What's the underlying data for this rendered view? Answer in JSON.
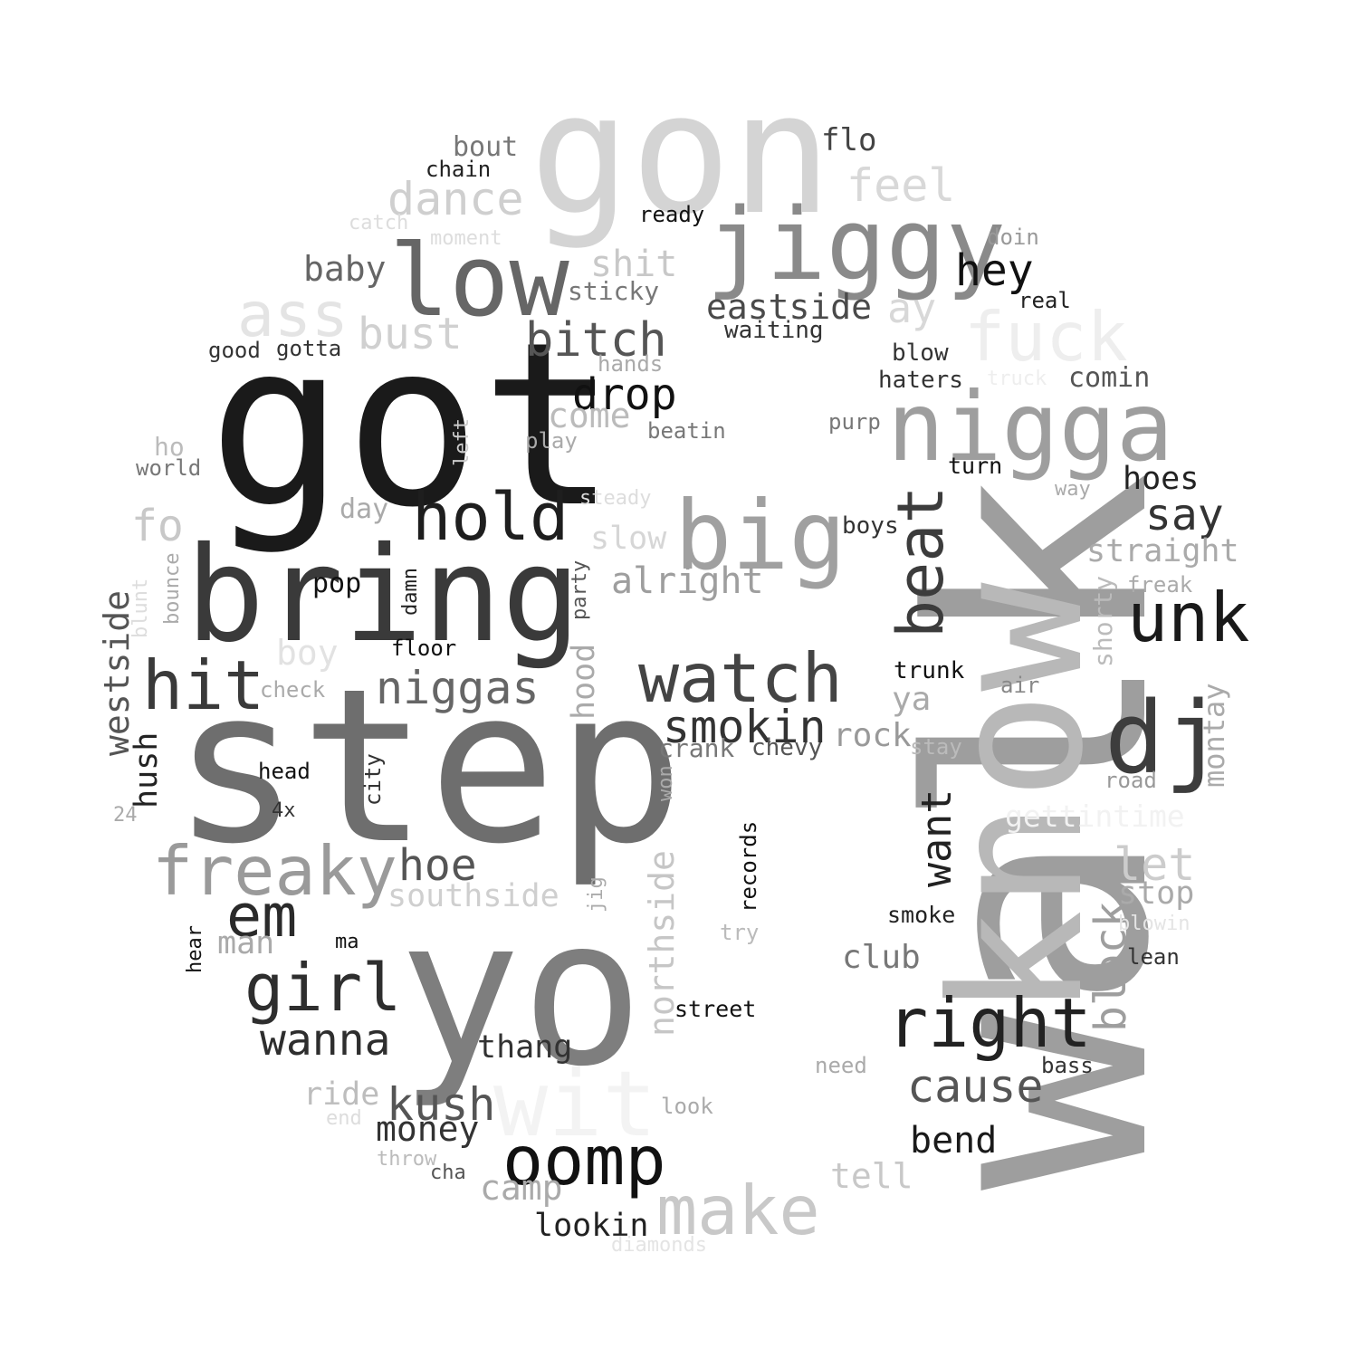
{
  "words": [
    {
      "text": "walk",
      "color": "#9e9e9e"
    },
    {
      "text": "got",
      "color": "#1a1a1a"
    },
    {
      "text": "step",
      "color": "#6e6e6e"
    },
    {
      "text": "know",
      "color": "#b8b8b8"
    },
    {
      "text": "gon",
      "color": "#d4d4d4"
    },
    {
      "text": "yo",
      "color": "#7e7e7e"
    },
    {
      "text": "bring",
      "color": "#3a3a3a"
    },
    {
      "text": "jiggy",
      "color": "#8a8a8a"
    },
    {
      "text": "nigga",
      "color": "#9e9e9e"
    },
    {
      "text": "low",
      "color": "#666666"
    },
    {
      "text": "big",
      "color": "#a0a0a0"
    },
    {
      "text": "dj",
      "color": "#3d3d3d"
    },
    {
      "text": "wit",
      "color": "#f3f3f3"
    },
    {
      "text": "fuck",
      "color": "#eeeeee"
    },
    {
      "text": "freaky",
      "color": "#9a9a9a"
    },
    {
      "text": "watch",
      "color": "#444444"
    },
    {
      "text": "oomp",
      "color": "#111111"
    },
    {
      "text": "right",
      "color": "#222222"
    },
    {
      "text": "hit",
      "color": "#3a3a3a"
    },
    {
      "text": "make",
      "color": "#c8c8c8"
    },
    {
      "text": "hold",
      "color": "#1e1e1e"
    },
    {
      "text": "unk",
      "color": "#1a1a1a"
    },
    {
      "text": "ass",
      "color": "#e4e4e4"
    },
    {
      "text": "girl",
      "color": "#2e2e2e"
    },
    {
      "text": "beat",
      "color": "#3c3c3c"
    },
    {
      "text": "em",
      "color": "#2a2a2a"
    },
    {
      "text": "bitch",
      "color": "#555555"
    },
    {
      "text": "dance",
      "color": "#cfcfcf"
    },
    {
      "text": "smokin",
      "color": "#333333"
    },
    {
      "text": "kush",
      "color": "#555555"
    },
    {
      "text": "cause",
      "color": "#555555"
    },
    {
      "text": "niggas",
      "color": "#666666"
    },
    {
      "text": "wanna",
      "color": "#2e2e2e"
    },
    {
      "text": "hey",
      "color": "#111111"
    },
    {
      "text": "drop",
      "color": "#111111"
    },
    {
      "text": "block",
      "color": "#9e9e9e"
    },
    {
      "text": "want",
      "color": "#222222"
    },
    {
      "text": "northside",
      "color": "#c6c6c6"
    },
    {
      "text": "alright",
      "color": "#9e9e9e"
    },
    {
      "text": "say",
      "color": "#333333"
    },
    {
      "text": "eastside",
      "color": "#4a4a4a"
    },
    {
      "text": "hoe",
      "color": "#555555"
    },
    {
      "text": "feel",
      "color": "#d8d8d8"
    },
    {
      "text": "westside",
      "color": "#555555"
    },
    {
      "text": "bust",
      "color": "#d0d0d0"
    },
    {
      "text": "let",
      "color": "#cccccc"
    },
    {
      "text": "bend",
      "color": "#1a1a1a"
    },
    {
      "text": "baby",
      "color": "#666666"
    },
    {
      "text": "shit",
      "color": "#c8c8c8"
    },
    {
      "text": "southside",
      "color": "#cfcfcf"
    },
    {
      "text": "straight",
      "color": "#aaaaaa"
    },
    {
      "text": "come",
      "color": "#bbbbbb"
    },
    {
      "text": "hood",
      "color": "#aaaaaa"
    },
    {
      "text": "ay",
      "color": "#d8d8d8"
    },
    {
      "text": "tell",
      "color": "#c8c8c8"
    },
    {
      "text": "money",
      "color": "#333333"
    },
    {
      "text": "club",
      "color": "#777777"
    },
    {
      "text": "lookin",
      "color": "#222222"
    },
    {
      "text": "camp",
      "color": "#aaaaaa"
    },
    {
      "text": "hoes",
      "color": "#222222"
    },
    {
      "text": "boy",
      "color": "#e2e2e2"
    },
    {
      "text": "thang",
      "color": "#333333"
    },
    {
      "text": "fo",
      "color": "#c8c8c8"
    },
    {
      "text": "rock",
      "color": "#999999"
    },
    {
      "text": "slow",
      "color": "#d6d6d6"
    },
    {
      "text": "ya",
      "color": "#aaaaaa"
    },
    {
      "text": "stop",
      "color": "#aaaaaa"
    },
    {
      "text": "montay",
      "color": "#aaaaaa"
    },
    {
      "text": "hush",
      "color": "#222222"
    },
    {
      "text": "ride",
      "color": "#bdbdbd"
    },
    {
      "text": "sticky",
      "color": "#777777"
    },
    {
      "text": "man",
      "color": "#aaaaaa"
    },
    {
      "text": "crank",
      "color": "#777777"
    },
    {
      "text": "shorty",
      "color": "#bbbbbb"
    },
    {
      "text": "gettintime",
      "color": "#f2f2f2"
    },
    {
      "text": "flo",
      "color": "#444444"
    },
    {
      "text": "pop",
      "color": "#111111"
    },
    {
      "text": "bout",
      "color": "#777777"
    },
    {
      "text": "comin",
      "color": "#555555"
    },
    {
      "text": "chevy",
      "color": "#555555"
    },
    {
      "text": "day",
      "color": "#aaaaaa"
    },
    {
      "text": "waiting",
      "color": "#333333"
    },
    {
      "text": "blow",
      "color": "#333333"
    },
    {
      "text": "haters",
      "color": "#333333"
    },
    {
      "text": "records",
      "color": "#111111"
    },
    {
      "text": "city",
      "color": "#333333"
    },
    {
      "text": "trunk",
      "color": "#111111"
    },
    {
      "text": "boys",
      "color": "#333333"
    },
    {
      "text": "turn",
      "color": "#111111"
    },
    {
      "text": "floor",
      "color": "#111111"
    },
    {
      "text": "street",
      "color": "#111111"
    },
    {
      "text": "ready",
      "color": "#111111"
    },
    {
      "text": "smoke",
      "color": "#222222"
    },
    {
      "text": "chain",
      "color": "#222222"
    },
    {
      "text": "head",
      "color": "#111111"
    },
    {
      "text": "hands",
      "color": "#aaaaaa"
    },
    {
      "text": "gotta",
      "color": "#333333"
    },
    {
      "text": "good",
      "color": "#333333"
    },
    {
      "text": "beatin",
      "color": "#777777"
    },
    {
      "text": "purp",
      "color": "#777777"
    },
    {
      "text": "doin",
      "color": "#999999"
    },
    {
      "text": "real",
      "color": "#222222"
    },
    {
      "text": "check",
      "color": "#aaaaaa"
    },
    {
      "text": "play",
      "color": "#aaaaaa"
    },
    {
      "text": "freak",
      "color": "#aaaaaa"
    },
    {
      "text": "world",
      "color": "#777777"
    },
    {
      "text": "ho",
      "color": "#bbbbbb"
    },
    {
      "text": "air",
      "color": "#888888"
    },
    {
      "text": "stay",
      "color": "#bbbbbb"
    },
    {
      "text": "road",
      "color": "#999999"
    },
    {
      "text": "need",
      "color": "#aaaaaa"
    },
    {
      "text": "bass",
      "color": "#333333"
    },
    {
      "text": "look",
      "color": "#aaaaaa"
    },
    {
      "text": "try",
      "color": "#bbbbbb"
    },
    {
      "text": "lean",
      "color": "#333333"
    },
    {
      "text": "way",
      "color": "#aaaaaa"
    },
    {
      "text": "steady",
      "color": "#dddddd"
    },
    {
      "text": "moment",
      "color": "#dddddd"
    },
    {
      "text": "catch",
      "color": "#dddddd"
    },
    {
      "text": "truck",
      "color": "#eeeeee"
    },
    {
      "text": "blowin",
      "color": "#e4e4e4"
    },
    {
      "text": "end",
      "color": "#dddddd"
    },
    {
      "text": "throw",
      "color": "#bbbbbb"
    },
    {
      "text": "cha",
      "color": "#555555"
    },
    {
      "text": "diamonds",
      "color": "#e4e4e4"
    },
    {
      "text": "4x",
      "color": "#333333"
    },
    {
      "text": "24",
      "color": "#aaaaaa"
    },
    {
      "text": "ma",
      "color": "#111111"
    },
    {
      "text": "hear",
      "color": "#111111"
    },
    {
      "text": "left",
      "color": "#cccccc"
    },
    {
      "text": "party",
      "color": "#555555"
    },
    {
      "text": "damn",
      "color": "#222222"
    },
    {
      "text": "bounce",
      "color": "#aaaaaa"
    },
    {
      "text": "blunt",
      "color": "#dddddd"
    },
    {
      "text": "jig",
      "color": "#aaaaaa"
    },
    {
      "text": "won",
      "color": "#aaaaaa"
    }
  ]
}
